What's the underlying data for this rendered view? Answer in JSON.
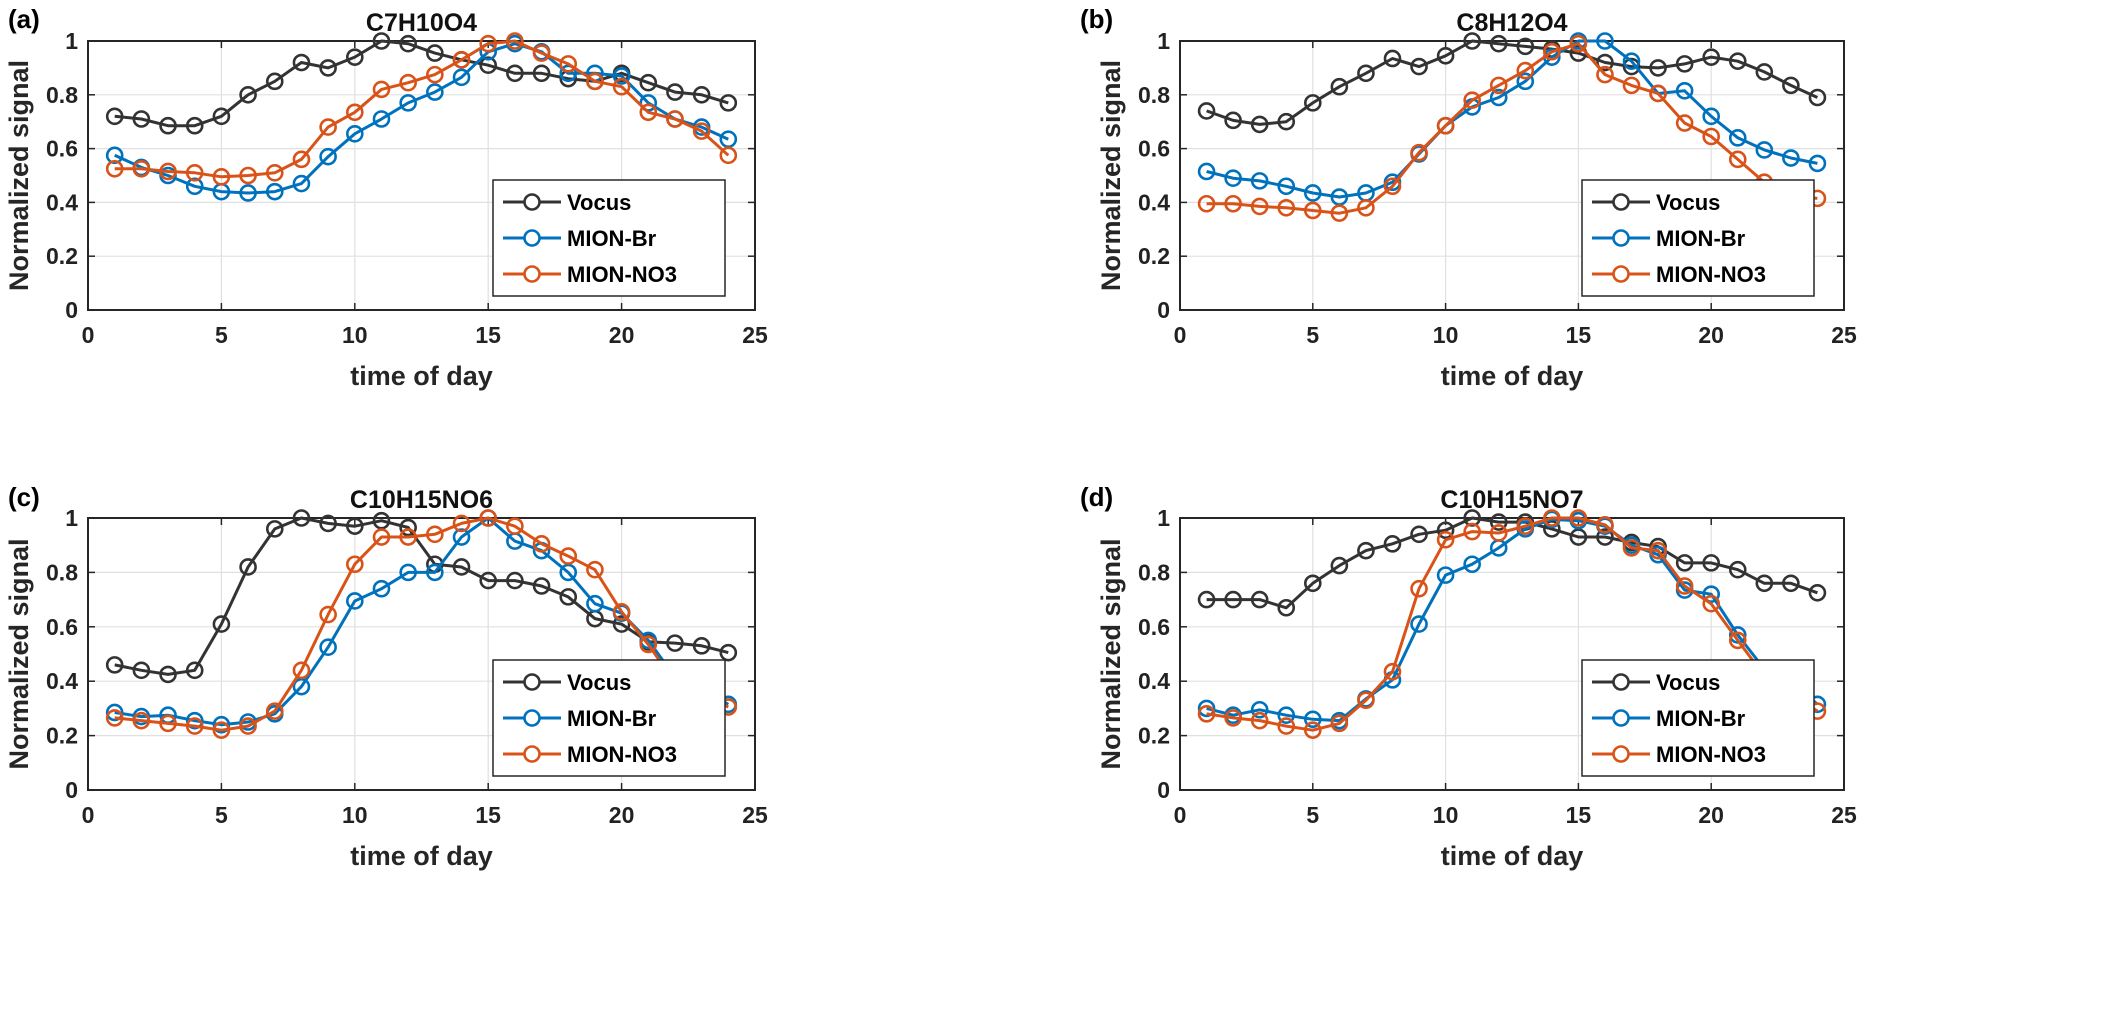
{
  "chart_data": [
    {
      "type": "line",
      "panel_label": "(a)",
      "title": "C7H10O4",
      "xlabel": "time of day",
      "ylabel": "Normalized signal",
      "xlim": [
        0,
        25
      ],
      "ylim": [
        0,
        1
      ],
      "xticks": [
        0,
        5,
        10,
        15,
        20,
        25
      ],
      "yticks": [
        0,
        0.2,
        0.4,
        0.6,
        0.8,
        1
      ],
      "ytick_labels": [
        "0",
        "0.2",
        "0.4",
        "0.6",
        "0.8",
        "1"
      ],
      "grid": true,
      "legend_position": "bottom-right",
      "x": [
        1,
        2,
        3,
        4,
        5,
        6,
        7,
        8,
        9,
        10,
        11,
        12,
        13,
        14,
        15,
        16,
        17,
        18,
        19,
        20,
        21,
        22,
        23,
        24
      ],
      "series": [
        {
          "name": "Vocus",
          "color": "#333333",
          "values": [
            0.72,
            0.71,
            0.685,
            0.685,
            0.72,
            0.8,
            0.85,
            0.92,
            0.9,
            0.94,
            1.0,
            0.99,
            0.955,
            0.93,
            0.91,
            0.88,
            0.88,
            0.86,
            0.85,
            0.88,
            0.845,
            0.81,
            0.8,
            0.77
          ]
        },
        {
          "name": "MION-Br",
          "color": "#0072BD",
          "values": [
            0.575,
            0.53,
            0.5,
            0.46,
            0.44,
            0.435,
            0.44,
            0.47,
            0.57,
            0.655,
            0.71,
            0.77,
            0.81,
            0.865,
            0.96,
            0.99,
            0.96,
            0.88,
            0.88,
            0.87,
            0.77,
            0.71,
            0.68,
            0.635
          ]
        },
        {
          "name": "MION-NO3",
          "color": "#D95319",
          "values": [
            0.525,
            0.525,
            0.515,
            0.51,
            0.495,
            0.5,
            0.51,
            0.56,
            0.68,
            0.735,
            0.82,
            0.845,
            0.875,
            0.93,
            0.99,
            1.0,
            0.955,
            0.915,
            0.85,
            0.83,
            0.735,
            0.71,
            0.665,
            0.575
          ]
        }
      ]
    },
    {
      "type": "line",
      "panel_label": "(b)",
      "title": "C8H12O4",
      "xlabel": "time of day",
      "ylabel": "Normalized signal",
      "xlim": [
        0,
        25
      ],
      "ylim": [
        0,
        1
      ],
      "xticks": [
        0,
        5,
        10,
        15,
        20,
        25
      ],
      "yticks": [
        0,
        0.2,
        0.4,
        0.6,
        0.8,
        1
      ],
      "ytick_labels": [
        "0",
        "0.2",
        "0.4",
        "0.6",
        "0.8",
        "1"
      ],
      "grid": true,
      "legend_position": "bottom-right",
      "x": [
        1,
        2,
        3,
        4,
        5,
        6,
        7,
        8,
        9,
        10,
        11,
        12,
        13,
        14,
        15,
        16,
        17,
        18,
        19,
        20,
        21,
        22,
        23,
        24
      ],
      "series": [
        {
          "name": "Vocus",
          "color": "#333333",
          "values": [
            0.74,
            0.705,
            0.69,
            0.7,
            0.77,
            0.83,
            0.88,
            0.935,
            0.905,
            0.945,
            1.0,
            0.99,
            0.98,
            0.97,
            0.955,
            0.92,
            0.905,
            0.9,
            0.915,
            0.94,
            0.925,
            0.885,
            0.835,
            0.79
          ]
        },
        {
          "name": "MION-Br",
          "color": "#0072BD",
          "values": [
            0.515,
            0.49,
            0.48,
            0.46,
            0.435,
            0.42,
            0.435,
            0.475,
            0.58,
            0.685,
            0.755,
            0.79,
            0.85,
            0.94,
            1.0,
            1.0,
            0.925,
            0.805,
            0.815,
            0.72,
            0.64,
            0.595,
            0.565,
            0.545
          ]
        },
        {
          "name": "MION-NO3",
          "color": "#D95319",
          "values": [
            0.395,
            0.395,
            0.385,
            0.38,
            0.37,
            0.36,
            0.38,
            0.46,
            0.585,
            0.685,
            0.78,
            0.835,
            0.89,
            0.96,
            0.99,
            0.875,
            0.835,
            0.805,
            0.695,
            0.645,
            0.56,
            0.475,
            0.425,
            0.415
          ]
        }
      ]
    },
    {
      "type": "line",
      "panel_label": "(c)",
      "title": "C10H15NO6",
      "xlabel": "time of day",
      "ylabel": "Normalized signal",
      "xlim": [
        0,
        25
      ],
      "ylim": [
        0,
        1
      ],
      "xticks": [
        0,
        5,
        10,
        15,
        20,
        25
      ],
      "yticks": [
        0,
        0.2,
        0.4,
        0.6,
        0.8,
        1
      ],
      "ytick_labels": [
        "0",
        "0.2",
        "0.4",
        "0.6",
        "0.8",
        "1"
      ],
      "grid": true,
      "legend_position": "bottom-right",
      "x": [
        1,
        2,
        3,
        4,
        5,
        6,
        7,
        8,
        9,
        10,
        11,
        12,
        13,
        14,
        15,
        16,
        17,
        18,
        19,
        20,
        21,
        22,
        23,
        24
      ],
      "series": [
        {
          "name": "Vocus",
          "color": "#333333",
          "values": [
            0.46,
            0.44,
            0.425,
            0.44,
            0.61,
            0.82,
            0.96,
            1.0,
            0.98,
            0.97,
            0.99,
            0.965,
            0.83,
            0.82,
            0.77,
            0.77,
            0.75,
            0.71,
            0.63,
            0.61,
            0.545,
            0.54,
            0.53,
            0.505
          ]
        },
        {
          "name": "MION-Br",
          "color": "#0072BD",
          "values": [
            0.285,
            0.27,
            0.275,
            0.255,
            0.24,
            0.25,
            0.28,
            0.38,
            0.525,
            0.695,
            0.74,
            0.8,
            0.8,
            0.93,
            1.0,
            0.915,
            0.88,
            0.8,
            0.685,
            0.65,
            0.55,
            0.415,
            0.37,
            0.315
          ]
        },
        {
          "name": "MION-NO3",
          "color": "#D95319",
          "values": [
            0.265,
            0.255,
            0.245,
            0.235,
            0.22,
            0.235,
            0.29,
            0.44,
            0.645,
            0.83,
            0.93,
            0.93,
            0.94,
            0.98,
            1.0,
            0.97,
            0.905,
            0.86,
            0.81,
            0.655,
            0.535,
            0.395,
            0.35,
            0.305
          ]
        }
      ]
    },
    {
      "type": "line",
      "panel_label": "(d)",
      "title": "C10H15NO7",
      "xlabel": "time of day",
      "ylabel": "Normalized signal",
      "xlim": [
        0,
        25
      ],
      "ylim": [
        0,
        1
      ],
      "xticks": [
        0,
        5,
        10,
        15,
        20,
        25
      ],
      "yticks": [
        0,
        0.2,
        0.4,
        0.6,
        0.8,
        1
      ],
      "ytick_labels": [
        "0",
        "0.2",
        "0.4",
        "0.6",
        "0.8",
        "1"
      ],
      "grid": true,
      "legend_position": "bottom-right",
      "x": [
        1,
        2,
        3,
        4,
        5,
        6,
        7,
        8,
        9,
        10,
        11,
        12,
        13,
        14,
        15,
        16,
        17,
        18,
        19,
        20,
        21,
        22,
        23,
        24
      ],
      "series": [
        {
          "name": "Vocus",
          "color": "#333333",
          "values": [
            0.7,
            0.7,
            0.7,
            0.67,
            0.76,
            0.825,
            0.88,
            0.905,
            0.94,
            0.955,
            1.0,
            0.985,
            0.985,
            0.96,
            0.93,
            0.93,
            0.91,
            0.895,
            0.835,
            0.835,
            0.81,
            0.76,
            0.76,
            0.725
          ]
        },
        {
          "name": "MION-Br",
          "color": "#0072BD",
          "values": [
            0.3,
            0.275,
            0.295,
            0.275,
            0.26,
            0.255,
            0.335,
            0.405,
            0.61,
            0.79,
            0.83,
            0.89,
            0.96,
            0.995,
            0.99,
            0.97,
            0.9,
            0.865,
            0.735,
            0.72,
            0.57,
            0.445,
            0.405,
            0.315
          ]
        },
        {
          "name": "MION-NO3",
          "color": "#D95319",
          "values": [
            0.28,
            0.265,
            0.255,
            0.235,
            0.22,
            0.245,
            0.33,
            0.435,
            0.74,
            0.92,
            0.95,
            0.945,
            0.97,
            1.0,
            1.0,
            0.975,
            0.89,
            0.88,
            0.75,
            0.685,
            0.55,
            0.42,
            0.355,
            0.29
          ]
        }
      ]
    }
  ]
}
